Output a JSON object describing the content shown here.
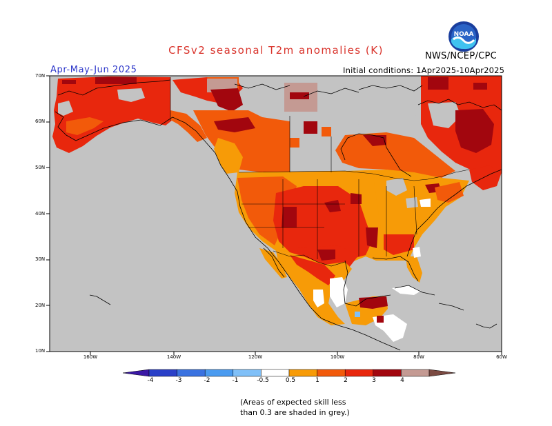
{
  "title": "CFSv2 seasonal T2m anomalies (K)",
  "agency": "NWS/NCEP/CPC",
  "logo_text": "NOAA",
  "period": "Apr-May-Jun 2025",
  "initial_conditions": "Initial conditions: 1Apr2025-10Apr2025",
  "lat_labels": [
    "70N",
    "60N",
    "50N",
    "40N",
    "30N",
    "20N",
    "10N"
  ],
  "lon_labels": [
    "160W",
    "140W",
    "120W",
    "100W",
    "80W",
    "60W"
  ],
  "colorbar": {
    "labels": [
      "-4",
      "-3",
      "-2",
      "-1",
      "-0.5",
      "0.5",
      "1",
      "2",
      "3",
      "4"
    ],
    "colors": [
      "#3a18a5",
      "#2a40c8",
      "#3a72e0",
      "#4a9bf0",
      "#80c0f8",
      "#ffffff",
      "#f79b07",
      "#f25a0a",
      "#e8270d",
      "#a2060e",
      "#c49a93",
      "#7b4a42"
    ]
  },
  "note_line1": "(Areas of expected skill less",
  "note_line2": "than 0.3 are shaded in grey.)",
  "colors": {
    "grey": "#c3c3c3",
    "orange": "#f79b07",
    "red_orange": "#f25a0a",
    "red": "#e8270d",
    "dark_red": "#a2060e",
    "pink_brown": "#c49a93",
    "title": "#d9332b",
    "period": "#2b35c9"
  }
}
